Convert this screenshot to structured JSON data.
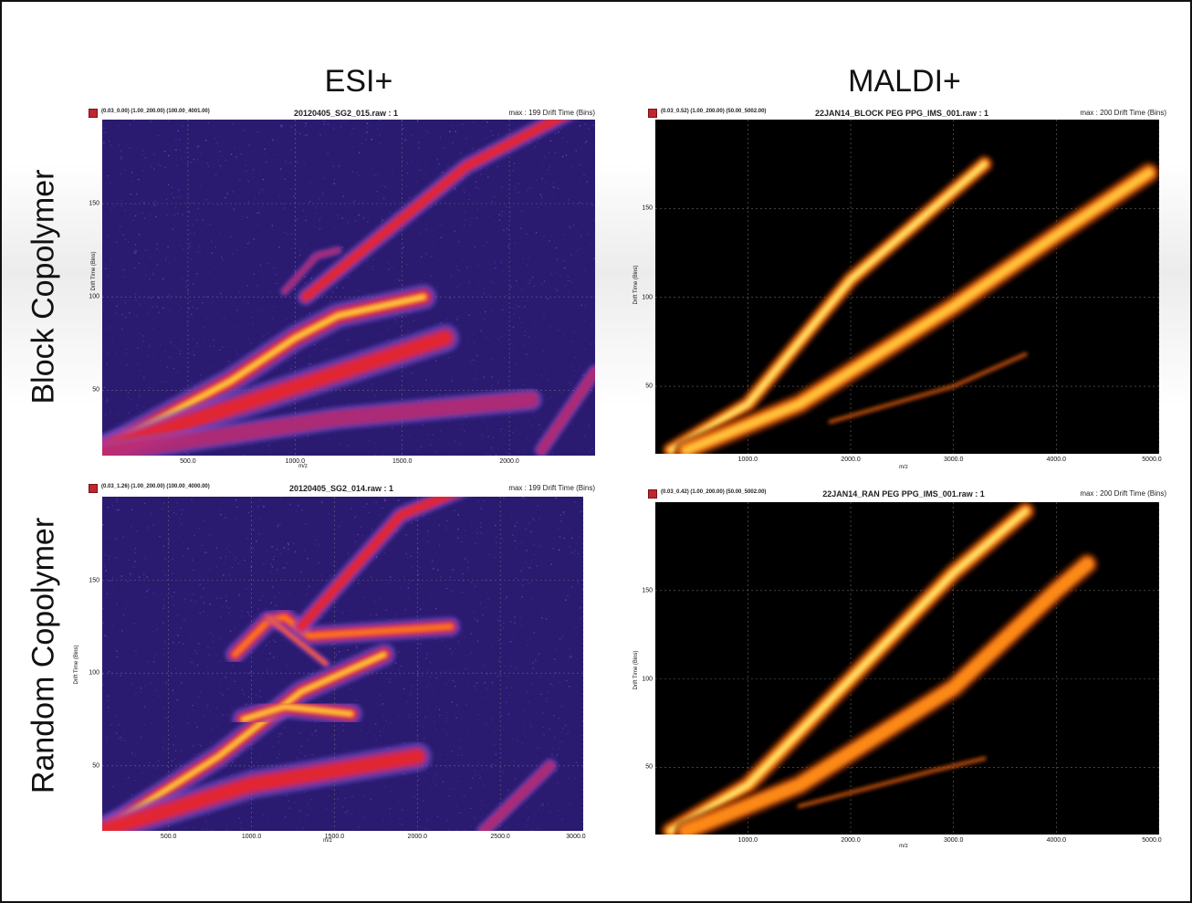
{
  "column_titles": [
    "ESI+",
    "MALDI+"
  ],
  "row_titles": [
    "Block Copolymer",
    "Random Copolymer"
  ],
  "colors": {
    "esi_palette": [
      "#1a0a4a",
      "#4b3aa8",
      "#7a4fd0",
      "#c02a6a",
      "#e8242a",
      "#ff7a1a",
      "#ffe24a"
    ],
    "maldi_palette": [
      "#7a2a00",
      "#d85a10",
      "#ff8c1a",
      "#ffc23a",
      "#fff27a"
    ],
    "legend_marker": "#c0262d"
  },
  "chart_data": [
    {
      "type": "heatmap",
      "panel": "esi-block",
      "range_text": "(0.03_0.00) (1.00_200.00) (100.00_4001.00)",
      "file_title": "20120405_SG2_015.raw : 1",
      "max_text": "max : 199 Drift Time (Bins)",
      "ylabel": "Drift Time (Bins)",
      "xlabel": "m/z",
      "palette": "esi",
      "xlim": [
        100,
        2400
      ],
      "ylim": [
        15,
        195
      ],
      "xticks": [
        500.0,
        1000.0,
        1500.0,
        2000.0
      ],
      "xtick_labels": [
        "500.0",
        "1000.0",
        "1500.0",
        "2000.0"
      ],
      "yticks": [
        50,
        100,
        150
      ],
      "bands": [
        {
          "x": [
            100,
            700,
            1000,
            1200,
            1600
          ],
          "y": [
            18,
            55,
            78,
            90,
            100
          ],
          "width": 9,
          "peak": 1.0
        },
        {
          "x": [
            1050,
            1800,
            2300
          ],
          "y": [
            100,
            170,
            200
          ],
          "width": 6,
          "peak": 0.55
        },
        {
          "x": [
            100,
            900,
            1700
          ],
          "y": [
            18,
            48,
            78
          ],
          "width": 10,
          "peak": 0.5
        },
        {
          "x": [
            100,
            1200,
            2100
          ],
          "y": [
            16,
            35,
            45
          ],
          "width": 8,
          "peak": 0.3
        },
        {
          "x": [
            950,
            1100,
            1200
          ],
          "y": [
            103,
            122,
            125
          ],
          "width": 3,
          "peak": 0.4
        },
        {
          "x": [
            2150,
            2400
          ],
          "y": [
            18,
            60
          ],
          "width": 5,
          "peak": 0.3
        }
      ],
      "background": "#2a1a70"
    },
    {
      "type": "heatmap",
      "panel": "maldi-block",
      "range_text": "(0.03_0.52) (1.00_200.00) (50.00_5002.00)",
      "file_title": "22JAN14_BLOCK PEG PPG_IMS_001.raw : 1",
      "max_text": "max : 200 Drift Time (Bins)",
      "ylabel": "Drift Time (Bins)",
      "xlabel": "m/z",
      "palette": "maldi",
      "xlim": [
        100,
        5000
      ],
      "ylim": [
        12,
        200
      ],
      "xticks": [
        1000.0,
        2000.0,
        3000.0,
        4000.0,
        5000.0
      ],
      "xtick_labels": [
        "1000.0",
        "2000.0",
        "3000.0",
        "4000.0",
        "5000.0"
      ],
      "yticks": [
        50,
        100,
        150
      ],
      "bands": [
        {
          "x": [
            250,
            1000,
            2000,
            3000,
            3300
          ],
          "y": [
            14,
            40,
            110,
            160,
            175
          ],
          "width": 8,
          "peak": 1.0
        },
        {
          "x": [
            400,
            1500,
            3000,
            4000,
            4900
          ],
          "y": [
            14,
            40,
            95,
            135,
            170
          ],
          "width": 10,
          "peak": 0.65
        },
        {
          "x": [
            1800,
            3000,
            3700
          ],
          "y": [
            30,
            50,
            68
          ],
          "width": 2,
          "peak": 0.3
        }
      ],
      "background": "#000000"
    },
    {
      "type": "heatmap",
      "panel": "esi-random",
      "range_text": "(0.03_1.26) (1.00_200.00) (100.00_4000.00)",
      "file_title": "20120405_SG2_014.raw : 1",
      "max_text": "max : 199 Drift Time (Bins)",
      "ylabel": "Drift Time (Bins)",
      "xlabel": "m/z",
      "palette": "esi",
      "xlim": [
        100,
        3000
      ],
      "ylim": [
        15,
        195
      ],
      "xticks": [
        500.0,
        1000.0,
        1500.0,
        2000.0,
        2500.0,
        3000.0
      ],
      "xtick_labels": [
        "500.0",
        "1000.0",
        "1500.0",
        "2000.0",
        "2500.0",
        "3000.0"
      ],
      "yticks": [
        50,
        100,
        150
      ],
      "bands": [
        {
          "x": [
            100,
            800,
            1300,
            1800
          ],
          "y": [
            15,
            55,
            90,
            110
          ],
          "width": 8,
          "peak": 1.0
        },
        {
          "x": [
            900,
            1100,
            1200,
            1350,
            2200
          ],
          "y": [
            110,
            128,
            130,
            120,
            125
          ],
          "width": 7,
          "peak": 0.8
        },
        {
          "x": [
            950,
            1200,
            1600
          ],
          "y": [
            75,
            82,
            78
          ],
          "width": 8,
          "peak": 0.9
        },
        {
          "x": [
            1300,
            1900,
            2300
          ],
          "y": [
            125,
            185,
            200
          ],
          "width": 6,
          "peak": 0.55
        },
        {
          "x": [
            100,
            1000,
            2000
          ],
          "y": [
            15,
            40,
            55
          ],
          "width": 10,
          "peak": 0.45
        },
        {
          "x": [
            2400,
            2800
          ],
          "y": [
            15,
            50
          ],
          "width": 5,
          "peak": 0.35
        },
        {
          "x": [
            1100,
            1450
          ],
          "y": [
            130,
            105
          ],
          "width": 3,
          "peak": 0.7
        }
      ],
      "background": "#2a1a70"
    },
    {
      "type": "heatmap",
      "panel": "maldi-random",
      "range_text": "(0.03_0.42) (1.00_200.00) (50.00_5002.00)",
      "file_title": "22JAN14_RAN PEG PPG_IMS_001.raw : 1",
      "max_text": "max : 200 Drift Time (Bins)",
      "ylabel": "Drift Time (Bins)",
      "xlabel": "m/z",
      "palette": "maldi",
      "xlim": [
        100,
        5000
      ],
      "ylim": [
        12,
        200
      ],
      "xticks": [
        1000.0,
        2000.0,
        3000.0,
        4000.0,
        5000.0
      ],
      "xtick_labels": [
        "1000.0",
        "2000.0",
        "3000.0",
        "4000.0",
        "5000.0"
      ],
      "yticks": [
        50,
        100,
        150
      ],
      "bands": [
        {
          "x": [
            250,
            1000,
            2000,
            3000,
            3700
          ],
          "y": [
            14,
            40,
            100,
            160,
            195
          ],
          "width": 9,
          "peak": 1.0
        },
        {
          "x": [
            400,
            1500,
            3000,
            4000,
            4300
          ],
          "y": [
            14,
            40,
            95,
            150,
            165
          ],
          "width": 10,
          "peak": 0.55
        },
        {
          "x": [
            1500,
            2800,
            3300
          ],
          "y": [
            28,
            48,
            55
          ],
          "width": 2,
          "peak": 0.3
        }
      ],
      "background": "#000000"
    }
  ]
}
